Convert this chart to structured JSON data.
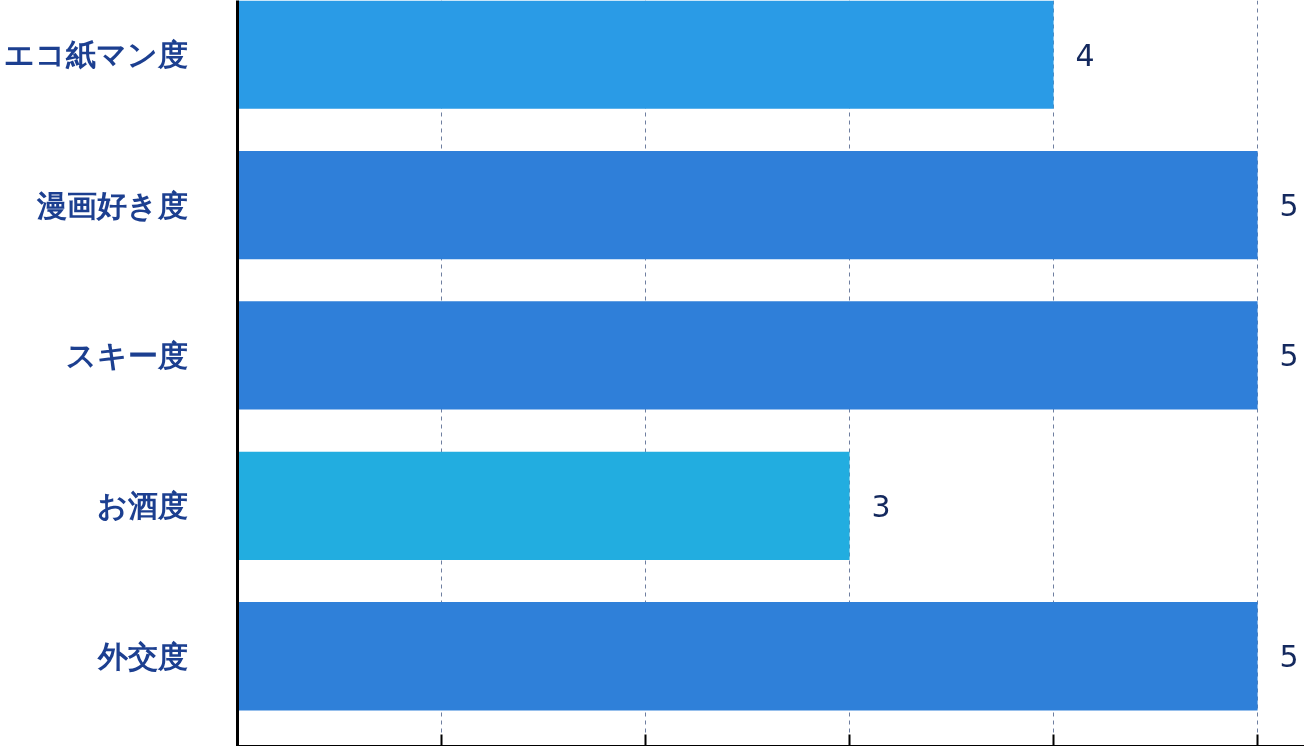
{
  "chart_data": {
    "type": "bar",
    "orientation": "horizontal",
    "categories": [
      "エコ紙マン度",
      "漫画好き度",
      "スキー度",
      "お酒度",
      "外交度"
    ],
    "values": [
      4,
      5,
      5,
      3,
      5
    ],
    "colors": [
      "#2a9be6",
      "#2f7fd9",
      "#2f7fd9",
      "#22ade0",
      "#2f80d9"
    ],
    "xlim": [
      0,
      5.23
    ],
    "xticks": [
      {
        "value": 1,
        "label": null
      },
      {
        "value": 2,
        "label": null
      },
      {
        "value": 3,
        "label": null
      },
      {
        "value": 4,
        "label": null
      },
      {
        "value": 5,
        "label": null
      }
    ],
    "grid": "x",
    "data_labels": true,
    "tick_labels": "y"
  }
}
